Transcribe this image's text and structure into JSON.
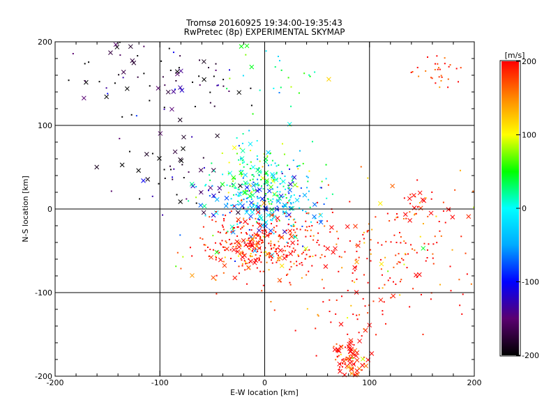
{
  "chart_data": {
    "type": "scatter",
    "title": "Tromsø 20160925 19:34:00-19:35:43",
    "subtitle": "RwPretec (8p) EXPERIMENTAL SKYMAP",
    "xlabel": "E-W location [km]",
    "ylabel": "N-S location [km]",
    "xlim": [
      -200,
      200
    ],
    "ylim": [
      -200,
      200
    ],
    "xticks": [
      "-200",
      "-100",
      "0",
      "100",
      "200"
    ],
    "yticks": [
      "-200",
      "-100",
      "0",
      "100",
      "200"
    ],
    "grid": true,
    "colorbar": {
      "label": "[m/s]",
      "range": [
        -200,
        200
      ],
      "ticks": [
        "200",
        "100",
        "0",
        "-100",
        "-200"
      ],
      "colormap": [
        "#000000",
        "#5a0070",
        "#0000ff",
        "#00aaff",
        "#00ffff",
        "#00ff00",
        "#ffff00",
        "#ff8800",
        "#ff0000"
      ]
    },
    "markers": {
      "x_marker": "x",
      "dot_marker": "."
    },
    "clusters": [
      {
        "x": -130,
        "y": 165,
        "sx": 35,
        "sy": 30,
        "n": 45,
        "v": -185,
        "xfrac": 0.35
      },
      {
        "x": -70,
        "y": 150,
        "sx": 30,
        "sy": 25,
        "n": 40,
        "v": -200,
        "xfrac": 0.35
      },
      {
        "x": 5,
        "y": 165,
        "sx": 25,
        "sy": 25,
        "n": 30,
        "v": 40,
        "xfrac": 0.3
      },
      {
        "x": 165,
        "y": 165,
        "sx": 12,
        "sy": 8,
        "n": 30,
        "v": 195,
        "xfrac": 0
      },
      {
        "x": -100,
        "y": 55,
        "sx": 25,
        "sy": 20,
        "n": 30,
        "v": -195,
        "xfrac": 0.5
      },
      {
        "x": -70,
        "y": 20,
        "sx": 20,
        "sy": 15,
        "n": 25,
        "v": -160,
        "xfrac": 0.4
      },
      {
        "x": -5,
        "y": 40,
        "sx": 25,
        "sy": 20,
        "n": 170,
        "v": 30,
        "xfrac": 0.2
      },
      {
        "x": 0,
        "y": 5,
        "sx": 25,
        "sy": 20,
        "n": 220,
        "v": -40,
        "xfrac": 0.3
      },
      {
        "x": -5,
        "y": -45,
        "sx": 30,
        "sy": 20,
        "n": 350,
        "v": 200,
        "xfrac": 0.15
      },
      {
        "x": 120,
        "y": -50,
        "sx": 60,
        "sy": 40,
        "n": 200,
        "v": 195,
        "xfrac": 0.05
      },
      {
        "x": 80,
        "y": -180,
        "sx": 8,
        "sy": 12,
        "n": 80,
        "v": 200,
        "xfrac": 0.5
      },
      {
        "x": 140,
        "y": 0,
        "sx": 30,
        "sy": 12,
        "n": 35,
        "v": 200,
        "xfrac": 0.4
      },
      {
        "x": 85,
        "y": -120,
        "sx": 20,
        "sy": 30,
        "n": 40,
        "v": 200,
        "xfrac": 0.1
      }
    ]
  }
}
